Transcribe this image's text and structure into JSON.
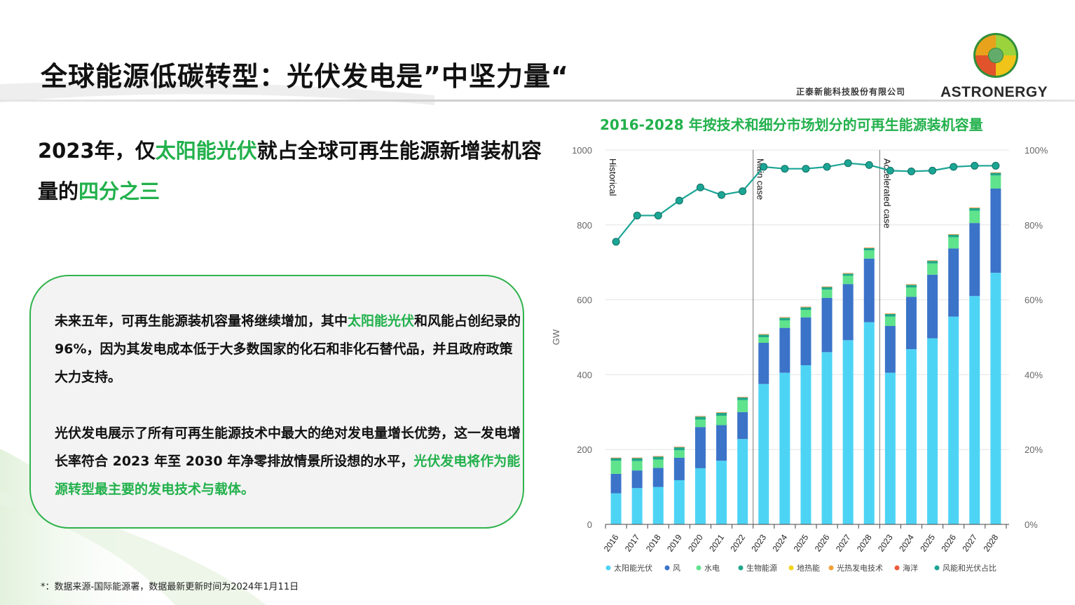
{
  "header": {
    "title": "全球能源低碳转型：光伏发电是”中坚力量“",
    "company_cn": "正泰新能科技股份有限公司",
    "brand": "ASTRONERGY"
  },
  "headline": {
    "part1": "2023年，仅",
    "part2": "太阳能光伏",
    "part3": "就占全球可再生能源新增装机容量的",
    "part4": "四分之三"
  },
  "card": {
    "p1_a": "未来五年，可再生能源装机容量将继续增加，其中",
    "p1_b": "太阳能光伏",
    "p1_c": "和风能占创纪录的96%，因为其发电成本低于大多数国家的化石和非化石替代品，并且政府政策大力支持。",
    "p2_a": "光伏发电展示了所有可再生能源技术中最大的绝对发电量增长优势，这一发电增长率符合 2023 年至 2030 年净零排放情景所设想的水平，",
    "p2_b": "光伏发电将作为能源转型最主要的发电技术与载体。"
  },
  "footnote": "*：数据来源-国际能源署，数据最新更新时间为2024年1月11日",
  "colors": {
    "accent_green": "#22b14c",
    "solar": "#4dd4f5",
    "wind": "#3b73c9",
    "hydro": "#5fe38c",
    "bio": "#1fa88a",
    "line": "#1ba595"
  },
  "chart_data": {
    "type": "bar",
    "title": "2016-2028 年按技术和细分市场划分的可再生能源装机容量",
    "ylabel": "GW",
    "ylim": [
      0,
      1000
    ],
    "yticks": [
      "0",
      "200",
      "400",
      "600",
      "800",
      "1000"
    ],
    "y2lim": [
      0,
      100
    ],
    "y2ticks": [
      "0%",
      "20%",
      "40%",
      "60%",
      "80%",
      "100%"
    ],
    "categories": [
      "2016",
      "2017",
      "2018",
      "2019",
      "2020",
      "2021",
      "2022",
      "2023",
      "2024",
      "2025",
      "2026",
      "2027",
      "2028",
      "2023",
      "2024",
      "2025",
      "2026",
      "2027",
      "2028"
    ],
    "section_labels": [
      {
        "text": "Historical",
        "at_index": 0
      },
      {
        "text": "Main case",
        "at_index": 7
      },
      {
        "text": "Accelerated case",
        "at_index": 13
      }
    ],
    "grid": true,
    "legend_position": "bottom",
    "series": [
      {
        "name": "太阳能光伏",
        "values": [
          83,
          97,
          100,
          118,
          150,
          170,
          228,
          375,
          405,
          425,
          460,
          492,
          540,
          405,
          468,
          497,
          555,
          610,
          672
        ]
      },
      {
        "name": "风",
        "values": [
          52,
          47,
          51,
          60,
          110,
          95,
          72,
          110,
          120,
          128,
          145,
          150,
          170,
          125,
          140,
          170,
          182,
          195,
          225
        ]
      },
      {
        "name": "水电",
        "values": [
          35,
          25,
          22,
          20,
          20,
          25,
          32,
          15,
          20,
          20,
          22,
          22,
          22,
          25,
          25,
          30,
          30,
          33,
          35
        ]
      },
      {
        "name": "生物能源",
        "values": [
          7,
          8,
          8,
          8,
          8,
          8,
          7,
          7,
          7,
          7,
          7,
          6,
          6,
          7,
          7,
          7,
          7,
          7,
          7
        ]
      },
      {
        "name": "地热能",
        "values": [
          0.5,
          0.5,
          0.5,
          0.5,
          0.5,
          0.5,
          0.5,
          0.5,
          0.5,
          0.5,
          0.5,
          0.5,
          0.5,
          0.5,
          0.5,
          0.5,
          0.5,
          0.5,
          0.5
        ]
      },
      {
        "name": "光热发电技术",
        "values": [
          0.5,
          0.5,
          0.5,
          0.5,
          0.5,
          0.5,
          0.5,
          0.5,
          0.5,
          0.5,
          0.5,
          0.5,
          0.5,
          0.5,
          0.5,
          0.5,
          0.5,
          0.5,
          0.5
        ]
      },
      {
        "name": "海洋",
        "values": [
          0.2,
          0.2,
          0.2,
          0.2,
          0.2,
          0.2,
          0.2,
          0.2,
          0.2,
          0.2,
          0.2,
          0.2,
          0.2,
          0.2,
          0.2,
          0.2,
          0.2,
          0.2,
          0.2
        ]
      }
    ],
    "line_series": {
      "name": "风能和光伏占比",
      "axis": "right",
      "values": [
        75.5,
        82.5,
        82.5,
        86.5,
        90,
        88,
        89,
        95.5,
        95,
        95,
        95.5,
        96.5,
        96,
        94.5,
        94.3,
        94.5,
        95.5,
        95.8,
        95.8
      ]
    }
  }
}
